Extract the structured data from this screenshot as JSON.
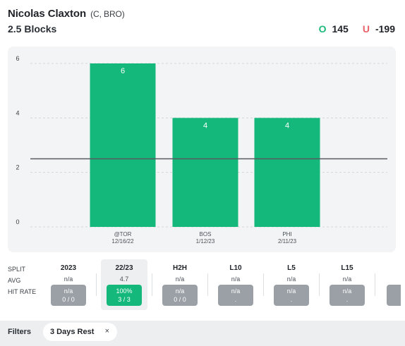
{
  "header": {
    "player_name": "Nicolas Claxton",
    "player_meta": "(C, BRO)",
    "prop": "2.5 Blocks",
    "over_mark": "O",
    "over_odds": "145",
    "under_mark": "U",
    "under_odds": "-199"
  },
  "colors": {
    "bar": "#14b87a",
    "over": "#1db97a",
    "under": "#e8626a",
    "chip_inactive": "#9aa0a6"
  },
  "chart_data": {
    "type": "bar",
    "categories": [
      {
        "opponent": "@TOR",
        "date": "12/16/22"
      },
      {
        "opponent": "BOS",
        "date": "1/12/23"
      },
      {
        "opponent": "PHI",
        "date": "2/11/23"
      }
    ],
    "values": [
      6,
      4,
      4
    ],
    "line": 2.5,
    "ylim": [
      0,
      6
    ],
    "yticks": [
      "0",
      "2",
      "4",
      "6"
    ],
    "grid": true
  },
  "split": {
    "row_labels": [
      "SPLIT",
      "AVG",
      "HIT RATE"
    ],
    "columns": [
      {
        "label": "2023",
        "avg": "n/a",
        "rate": "n/a",
        "detail": "0 / 0",
        "highlight": false
      },
      {
        "label": "22/23",
        "avg": "4.7",
        "rate": "100%",
        "detail": "3 / 3",
        "highlight": true
      },
      {
        "label": "H2H",
        "avg": "n/a",
        "rate": "n/a",
        "detail": "0 / 0",
        "highlight": false
      },
      {
        "label": "L10",
        "avg": "n/a",
        "rate": "n/a",
        "detail": ".",
        "highlight": false
      },
      {
        "label": "L5",
        "avg": "n/a",
        "rate": "n/a",
        "detail": ".",
        "highlight": false
      },
      {
        "label": "L15",
        "avg": "n/a",
        "rate": "n/a",
        "detail": ".",
        "highlight": false
      }
    ]
  },
  "filters": {
    "label": "Filters",
    "chips": [
      {
        "label": "3 Days Rest",
        "remove": "×"
      }
    ]
  }
}
